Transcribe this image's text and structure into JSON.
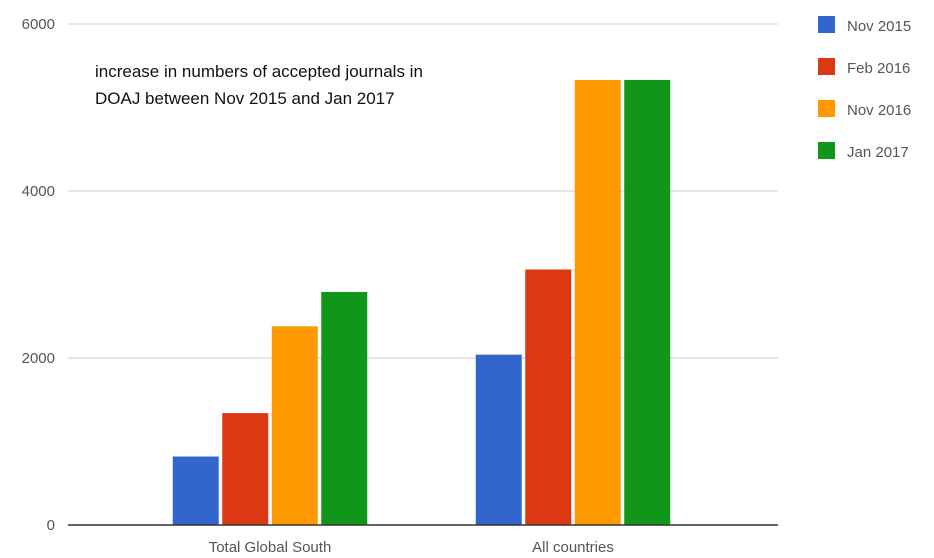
{
  "chart_data": {
    "type": "bar",
    "annotation_lines": [
      "increase in numbers of accepted journals in",
      "DOAJ between Nov 2015 and Jan 2017"
    ],
    "categories": [
      "Total Global South",
      "All countries"
    ],
    "series": [
      {
        "name": "Nov 2015",
        "color": "#3366cc",
        "values": [
          820,
          2040
        ]
      },
      {
        "name": "Feb 2016",
        "color": "#dc3912",
        "values": [
          1340,
          3060
        ]
      },
      {
        "name": "Nov 2016",
        "color": "#ff9900",
        "values": [
          2380,
          5330
        ]
      },
      {
        "name": "Jan 2017",
        "color": "#109618",
        "values": [
          2790,
          5330
        ]
      }
    ],
    "y_ticks": [
      0,
      2000,
      4000,
      6000
    ],
    "ylim": [
      0,
      6000
    ],
    "grid": true,
    "legend_position": "right"
  }
}
